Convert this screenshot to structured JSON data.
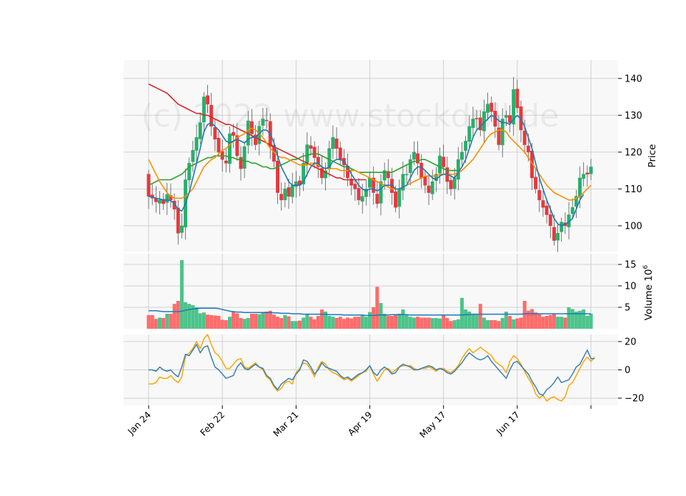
{
  "watermark": "(c) 2022 www.stockdrill.de",
  "colors": {
    "up": "#26b06a",
    "down": "#e8383d",
    "up_volume": "#4cc38a",
    "down_volume": "#ff6b6b",
    "ma_fast": "#1f77b4",
    "ma_mid": "#ff8c00",
    "ma_slow": "#2ca02c",
    "ma_long": "#d62728",
    "vol_ma": "#1f77b4",
    "osc_1": "#3a7fb5",
    "osc_2": "#ffa500",
    "panel_bg": "#f8f8f8",
    "grid": "#d0d0d0"
  },
  "chart_data": [
    {
      "type": "candlestick",
      "panel": "price",
      "ylabel": "Price",
      "ylim": [
        93,
        145
      ],
      "yticks": [
        100,
        110,
        120,
        130,
        140
      ],
      "x_tick_labels": [
        "Jan 24",
        "Feb 22",
        "Mar 21",
        "Apr 19",
        "May 17",
        "Jun 17",
        ""
      ],
      "x_tick_index": [
        0,
        20,
        40,
        60,
        80,
        100,
        120
      ],
      "grid": true,
      "close": [
        108,
        107.5,
        106.5,
        107,
        106,
        108.5,
        107,
        104.5,
        98,
        100,
        112.5,
        117,
        120.5,
        124,
        128,
        135,
        133,
        127,
        123.5,
        120,
        118,
        117,
        125,
        124.5,
        119,
        115.5,
        121.5,
        128.5,
        125,
        122,
        127,
        129,
        128.5,
        121.5,
        117.5,
        109,
        107,
        110,
        108,
        111,
        112,
        111,
        117,
        122,
        121,
        118.5,
        116,
        113,
        115,
        121,
        124,
        121,
        118,
        116.5,
        113,
        111,
        110,
        107,
        108,
        110,
        113,
        109,
        106,
        112,
        115,
        113,
        109,
        105,
        110,
        114,
        114,
        118,
        120,
        117,
        113,
        111,
        109,
        112,
        114,
        119,
        116,
        112,
        110,
        113,
        118,
        120,
        123,
        127,
        129,
        129,
        126,
        131,
        133,
        131,
        127,
        122,
        129,
        130,
        128,
        137,
        132,
        126,
        122,
        120,
        113,
        110,
        107,
        105,
        103,
        100,
        96,
        98,
        101,
        100,
        103,
        105,
        108,
        113,
        114,
        114,
        116
      ],
      "ma_fast": [
        108,
        107.8,
        107.5,
        107.3,
        107,
        107,
        106.8,
        106,
        104.5,
        104,
        106,
        109,
        113,
        117,
        121,
        125.5,
        127.5,
        128,
        127,
        126,
        124.5,
        123,
        122.5,
        123,
        123.5,
        123,
        122.5,
        123.5,
        124,
        124,
        125,
        126,
        126,
        125,
        122.5,
        119,
        116,
        114,
        112,
        111,
        111,
        111,
        112,
        114,
        116,
        117,
        117,
        116,
        115.5,
        116,
        117.5,
        118,
        118,
        117.5,
        116,
        114,
        112.5,
        111,
        110,
        109.5,
        110,
        110,
        109.5,
        110,
        111,
        111,
        111,
        110,
        110,
        110.5,
        111,
        113,
        115,
        116,
        116,
        115,
        114,
        113,
        112.5,
        113.5,
        114,
        114,
        113.5,
        113,
        114.5,
        116,
        118,
        121,
        124,
        126,
        127,
        128,
        129,
        130,
        129.5,
        128.5,
        128,
        128,
        127.5,
        129,
        130,
        129,
        127,
        124,
        121,
        117,
        113,
        110,
        107,
        104.5,
        102,
        100.5,
        100,
        100.5,
        101,
        102,
        104.5,
        107,
        108.5
      ],
      "ma_mid": [
        118,
        116,
        114,
        112,
        110.5,
        109,
        108,
        107.5,
        107.5,
        107.5,
        108,
        109,
        110,
        112,
        114,
        116,
        117,
        118,
        118.5,
        119.5,
        120.5,
        121,
        122,
        123,
        124,
        124.5,
        125,
        126,
        126.5,
        126,
        125,
        124,
        122.5,
        121,
        120,
        119,
        118.5,
        118.5,
        118,
        117.5,
        117,
        116.5,
        116.5,
        116.5,
        117,
        117,
        116.5,
        116,
        115.5,
        115.5,
        115.5,
        115.5,
        115,
        115,
        115,
        115,
        115,
        114.5,
        114,
        113.5,
        113,
        112.5,
        112,
        111.5,
        111,
        110.5,
        110,
        110,
        110,
        110.5,
        111,
        111.5,
        112,
        112.5,
        113,
        113.5,
        113.5,
        113.5,
        113.5,
        114,
        114,
        114,
        114,
        114,
        114.5,
        115,
        116,
        117,
        118,
        119.5,
        121,
        122.5,
        124,
        125,
        125.5,
        126,
        126,
        125.5,
        124,
        123,
        122,
        121,
        120,
        118.5,
        117,
        115.5,
        114,
        112.5,
        111,
        110,
        109,
        108.5,
        108,
        107.5,
        107,
        107,
        107.5,
        108,
        109,
        110,
        111
      ],
      "ma_slow": [
        111,
        111.5,
        112,
        112.5,
        112.5,
        112.5,
        112.5,
        113,
        113.5,
        114,
        115,
        116,
        116.5,
        117,
        117.5,
        118,
        118.5,
        118.5,
        119,
        119,
        119,
        119,
        118.5,
        118.5,
        118,
        118,
        117.5,
        117.5,
        117,
        117,
        116.5,
        116,
        116,
        115.5,
        115.5,
        116,
        116.5,
        117,
        117.5,
        118,
        118,
        118.5,
        119,
        119,
        119.5,
        119.5,
        119.5,
        119,
        118.5,
        118,
        117.5,
        117,
        116.5,
        116,
        116,
        115.5,
        115,
        114.5,
        114.5,
        114.5,
        114.5,
        114.5,
        114.5,
        114.5,
        114.5,
        114.5,
        114.5,
        115,
        115.5,
        116,
        116.5,
        117,
        117.5,
        117.5,
        118,
        118,
        117.5,
        117,
        116.5,
        116,
        115.5,
        115,
        115,
        115,
        115
      ],
      "ma_long": [
        138.5,
        138,
        137.5,
        137,
        136.5,
        136,
        135,
        134,
        133,
        132.5,
        132,
        131.5,
        131,
        130.5,
        130.5,
        130,
        130,
        129.5,
        129,
        128.5,
        128,
        127.5,
        127.5,
        127,
        126.5,
        126,
        125.5,
        125,
        124.5,
        124,
        123.5,
        123,
        122.5,
        122,
        121.5,
        121,
        120.5,
        120,
        119.5,
        119,
        118.5,
        118,
        117.5,
        117,
        116.5,
        116,
        115.5,
        115,
        114.5,
        114,
        113.5,
        113,
        113,
        112.5,
        112.5,
        112.5,
        112.5,
        112.5,
        112.5,
        112.5
      ]
    },
    {
      "type": "bar",
      "panel": "volume",
      "ylabel": "Volume  10^6",
      "ylim": [
        0,
        17.5
      ],
      "yticks": [
        5,
        10,
        15
      ],
      "values": [
        3.2,
        3.2,
        2.3,
        2.6,
        2.5,
        3.5,
        3.5,
        5.8,
        6.5,
        16.0,
        6.2,
        5.8,
        5.5,
        5.0,
        3.6,
        3.8,
        3.3,
        3.2,
        3.1,
        3.0,
        2.1,
        2.0,
        2.8,
        4.0,
        3.6,
        2.5,
        2.3,
        2.5,
        3.5,
        3.5,
        3.4,
        3.7,
        4.0,
        4.2,
        3.3,
        2.8,
        2.5,
        3.2,
        2.9,
        1.8,
        1.8,
        1.9,
        2.6,
        3.5,
        2.8,
        2.2,
        3.0,
        4.5,
        4.0,
        3.0,
        2.8,
        2.5,
        2.8,
        2.3,
        2.6,
        2.4,
        2.8,
        2.8,
        3.2,
        2.8,
        3.9,
        5.0,
        9.8,
        6.0,
        3.5,
        3.0,
        3.0,
        3.4,
        3.5,
        4.5,
        3.2,
        2.8,
        2.6,
        2.8,
        2.6,
        2.6,
        2.6,
        2.5,
        2.5,
        2.4,
        3.2,
        2.5,
        1.8,
        2.0,
        2.2,
        7.2,
        4.5,
        4.0,
        3.5,
        3.4,
        5.8,
        2.6,
        2.0,
        2.0,
        2.0,
        1.8,
        2.5,
        4.0,
        3.0,
        2.2,
        2.4,
        2.6,
        6.5,
        4.2,
        4.6,
        3.8,
        3.4,
        2.8,
        3.0,
        3.2,
        3.4,
        2.8,
        2.8,
        2.6,
        5.0,
        4.6,
        4.0,
        4.2,
        4.5,
        3.0,
        3.5
      ],
      "vol_ma": [
        4.2,
        4.2,
        4.2,
        4.1,
        4.0,
        4.0,
        4.0,
        4.0,
        4.0,
        4.1,
        4.3,
        4.5,
        4.6,
        4.7,
        4.8,
        4.8,
        4.8,
        4.8,
        4.8,
        4.7,
        4.5,
        4.3,
        4.1,
        4.0,
        3.9,
        3.9,
        3.8,
        3.8,
        3.8,
        3.8,
        3.8,
        3.8,
        3.8,
        3.8,
        3.7,
        3.7,
        3.6,
        3.6,
        3.6,
        3.5,
        3.5,
        3.5,
        3.4,
        3.4,
        3.4,
        3.4,
        3.4,
        3.4,
        3.4,
        3.3,
        3.3,
        3.3,
        3.3,
        3.2,
        3.2,
        3.2,
        3.2,
        3.2,
        3.2,
        3.1,
        3.1,
        3.1,
        3.2,
        3.2,
        3.2,
        3.2,
        3.3,
        3.3,
        3.3,
        3.3,
        3.3,
        3.2,
        3.2,
        3.2,
        3.2,
        3.2,
        3.2,
        3.2,
        3.2,
        3.2,
        3.2,
        3.2,
        3.2,
        3.2,
        3.2,
        3.2,
        3.3,
        3.3,
        3.4,
        3.4,
        3.4,
        3.4,
        3.4,
        3.4,
        3.4,
        3.4,
        3.4,
        3.4,
        3.4,
        3.4,
        3.4,
        3.4,
        3.5,
        3.5,
        3.5,
        3.5,
        3.5,
        3.5,
        3.5,
        3.5,
        3.5,
        3.5,
        3.5,
        3.5,
        3.5,
        3.5,
        3.5,
        3.5,
        3.5,
        3.5,
        3.5
      ]
    },
    {
      "type": "line",
      "panel": "oscillator",
      "ylim": [
        -25,
        25
      ],
      "yticks": [
        -20,
        0,
        20
      ],
      "series_1": [
        0,
        0,
        -1,
        2,
        0,
        -1,
        0,
        -3,
        -5,
        2,
        11,
        10,
        14,
        18,
        12,
        16,
        17,
        9,
        2,
        0,
        -3,
        -6,
        -5,
        -4,
        2,
        5,
        1,
        0,
        2,
        4,
        2,
        1,
        -4,
        -6,
        -11,
        -14,
        -10,
        -8,
        -6,
        -7,
        -3,
        0,
        7,
        6,
        2,
        -3,
        0,
        5,
        2,
        1,
        0,
        -1,
        -4,
        -6,
        -5,
        -7,
        -5,
        -3,
        -2,
        0,
        3,
        -2,
        -4,
        0,
        2,
        0,
        -3,
        -2,
        2,
        4,
        3,
        2,
        0,
        0,
        1,
        2,
        3,
        2,
        0,
        1,
        0,
        -2,
        -3,
        -1,
        2,
        5,
        9,
        12,
        10,
        8,
        7,
        8,
        10,
        6,
        3,
        0,
        -3,
        -6,
        0,
        5,
        6,
        3,
        0,
        -3,
        -8,
        -12,
        -17,
        -18,
        -14,
        -12,
        -9,
        -5,
        -9,
        -8,
        -7,
        -3,
        2,
        4,
        9,
        14,
        8,
        8
      ],
      "series_2": [
        -10,
        -10,
        -9,
        -5,
        -6,
        -6,
        -4,
        -7,
        -9,
        -5,
        10,
        12,
        15,
        20,
        15,
        22,
        25,
        18,
        12,
        10,
        6,
        1,
        1,
        4,
        7,
        8,
        2,
        1,
        3,
        5,
        2,
        0,
        -5,
        -7,
        -12,
        -15,
        -13,
        -9,
        -8,
        -10,
        -2,
        1,
        5,
        4,
        0,
        -5,
        2,
        6,
        4,
        0,
        -2,
        -3,
        -5,
        -7,
        -6,
        -8,
        -6,
        -4,
        -2,
        -1,
        3,
        -3,
        -8,
        -4,
        0,
        1,
        -2,
        0,
        2,
        3,
        3,
        3,
        1,
        0,
        1,
        1,
        2,
        1,
        -1,
        1,
        1,
        -1,
        -2,
        0,
        3,
        8,
        12,
        15,
        12,
        14,
        16,
        14,
        12,
        10,
        6,
        4,
        2,
        -2,
        6,
        10,
        8,
        4,
        -1,
        -6,
        -10,
        -17,
        -20,
        -18,
        -22,
        -20,
        -19,
        -21,
        -22,
        -19,
        -11,
        -9,
        -4,
        1,
        6,
        9,
        6,
        9
      ]
    }
  ]
}
